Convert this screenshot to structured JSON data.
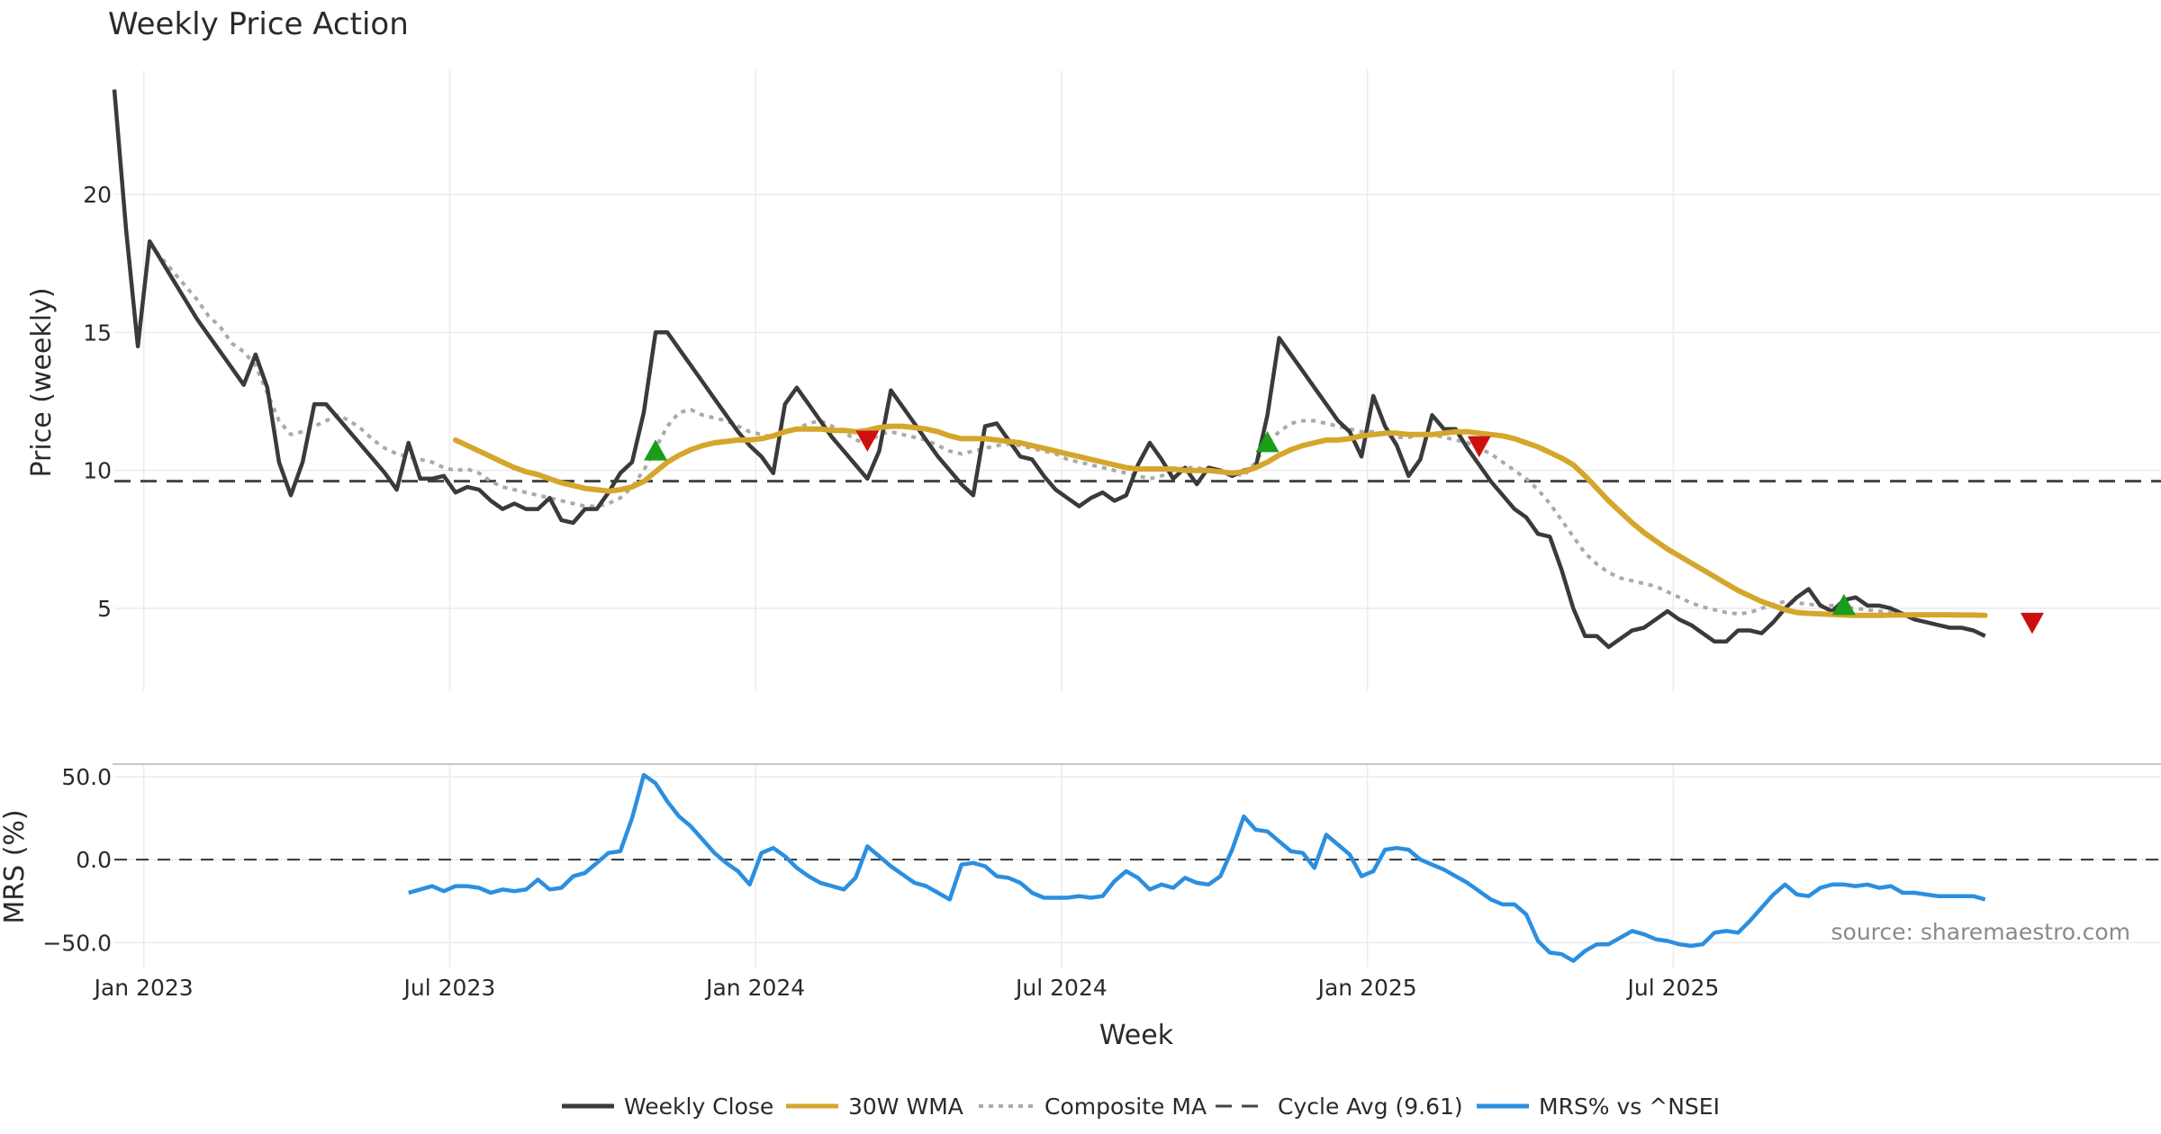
{
  "chart_data": {
    "type": "line",
    "title": "Weekly Price Action",
    "xlabel": "Week",
    "x_ticks": [
      "Jan 2023",
      "Jul 2023",
      "Jan 2024",
      "Jul 2024",
      "Jan 2025",
      "Jul 2025"
    ],
    "source": "source: sharemaestro.com",
    "grid": true,
    "legend_position": "bottom-center",
    "panels": [
      {
        "name": "price",
        "ylabel": "Price (weekly)",
        "ylim": [
          2,
          24.5
        ],
        "y_ticks": [
          5,
          10,
          15,
          20
        ],
        "reference_line": {
          "label": "Cycle Avg (9.61)",
          "value": 9.61
        },
        "series": [
          {
            "name": "Weekly Close",
            "start_week": 0,
            "values": [
              23.8,
              18.7,
              14.5,
              18.3,
              17.6,
              16.9,
              16.2,
              15.5,
              14.9,
              14.3,
              13.7,
              13.1,
              14.2,
              13.0,
              10.3,
              9.1,
              10.3,
              12.4,
              12.4,
              11.9,
              11.4,
              10.9,
              10.4,
              9.9,
              9.3,
              11.0,
              9.7,
              9.7,
              9.8,
              9.2,
              9.4,
              9.3,
              8.9,
              8.6,
              8.8,
              8.6,
              8.6,
              9.0,
              8.2,
              8.1,
              8.6,
              8.6,
              9.2,
              9.9,
              10.3,
              12.1,
              15.0,
              15.0,
              14.4,
              13.8,
              13.2,
              12.6,
              12.0,
              11.4,
              10.9,
              10.5,
              9.9,
              12.4,
              13.0,
              12.4,
              11.8,
              11.2,
              10.7,
              10.2,
              9.7,
              10.7,
              12.9,
              12.3,
              11.7,
              11.1,
              10.5,
              10.0,
              9.5,
              9.1,
              11.6,
              11.7,
              11.1,
              10.5,
              10.4,
              9.8,
              9.3,
              9.0,
              8.7,
              9.0,
              9.2,
              8.9,
              9.1,
              10.2,
              11.0,
              10.4,
              9.7,
              10.1,
              9.5,
              10.1,
              10.0,
              9.8,
              10.0,
              10.1,
              12.0,
              14.8,
              14.2,
              13.6,
              13.0,
              12.4,
              11.8,
              11.4,
              10.5,
              12.7,
              11.6,
              10.9,
              9.8,
              10.4,
              12.0,
              11.5,
              11.5,
              10.8,
              10.2,
              9.6,
              9.1,
              8.6,
              8.3,
              7.7,
              7.6,
              6.4,
              5.0,
              4.0,
              4.0,
              3.6,
              3.9,
              4.2,
              4.3,
              4.6,
              4.9,
              4.6,
              4.4,
              4.1,
              3.8,
              3.8,
              4.2,
              4.2,
              4.1,
              4.5,
              5.0,
              5.4,
              5.7,
              5.1,
              4.9,
              5.3,
              5.4,
              5.1,
              5.1,
              5.0,
              4.8,
              4.6,
              4.5,
              4.4,
              4.3,
              4.3,
              4.2,
              4.0
            ]
          },
          {
            "name": "30W WMA",
            "start_week": 29,
            "values": [
              11.1,
              10.9,
              10.7,
              10.5,
              10.3,
              10.1,
              9.95,
              9.85,
              9.7,
              9.55,
              9.45,
              9.35,
              9.3,
              9.25,
              9.3,
              9.4,
              9.6,
              9.95,
              10.3,
              10.55,
              10.75,
              10.9,
              11.0,
              11.05,
              11.1,
              11.1,
              11.15,
              11.25,
              11.4,
              11.5,
              11.5,
              11.5,
              11.45,
              11.45,
              11.4,
              11.45,
              11.55,
              11.6,
              11.6,
              11.55,
              11.5,
              11.4,
              11.25,
              11.15,
              11.15,
              11.15,
              11.1,
              11.05,
              11.0,
              10.9,
              10.8,
              10.7,
              10.6,
              10.5,
              10.4,
              10.3,
              10.2,
              10.1,
              10.05,
              10.05,
              10.05,
              10.05,
              10.0,
              10.0,
              10.0,
              9.95,
              9.9,
              9.95,
              10.1,
              10.3,
              10.55,
              10.75,
              10.9,
              11.0,
              11.1,
              11.1,
              11.15,
              11.25,
              11.3,
              11.35,
              11.35,
              11.3,
              11.3,
              11.3,
              11.35,
              11.4,
              11.4,
              11.35,
              11.3,
              11.25,
              11.15,
              11.0,
              10.85,
              10.65,
              10.45,
              10.2,
              9.8,
              9.35,
              8.9,
              8.5,
              8.1,
              7.75,
              7.45,
              7.15,
              6.9,
              6.65,
              6.4,
              6.15,
              5.9,
              5.65,
              5.45,
              5.25,
              5.1,
              4.95,
              4.85,
              4.82,
              4.8,
              4.78,
              4.76,
              4.75,
              4.75,
              4.75,
              4.76,
              4.76,
              4.77,
              4.77,
              4.77,
              4.77,
              4.76,
              4.76,
              4.75
            ]
          },
          {
            "name": "Composite MA",
            "start_week": 3,
            "values": [
              18.2,
              17.7,
              17.2,
              16.7,
              16.2,
              15.6,
              15.2,
              14.6,
              14.3,
              13.8,
              12.8,
              11.8,
              11.3,
              11.4,
              11.6,
              11.8,
              12.0,
              11.8,
              11.5,
              11.1,
              10.8,
              10.6,
              10.5,
              10.4,
              10.3,
              10.1,
              10.0,
              10.05,
              9.9,
              9.6,
              9.4,
              9.3,
              9.2,
              9.1,
              9.0,
              8.9,
              8.8,
              8.7,
              8.7,
              8.8,
              9.0,
              9.4,
              10.0,
              10.8,
              11.6,
              12.1,
              12.2,
              12.0,
              11.9,
              11.8,
              11.6,
              11.4,
              11.3,
              11.2,
              11.4,
              11.5,
              11.7,
              11.8,
              11.6,
              11.4,
              11.1,
              11.0,
              11.3,
              11.4,
              11.3,
              11.2,
              11.1,
              10.9,
              10.7,
              10.6,
              10.7,
              10.8,
              10.9,
              10.95,
              10.9,
              10.8,
              10.7,
              10.6,
              10.4,
              10.3,
              10.2,
              10.1,
              10.0,
              9.9,
              9.8,
              9.7,
              9.8,
              10.0,
              10.1,
              10.1,
              10.0,
              10.0,
              9.9,
              9.8,
              10.3,
              11.0,
              11.4,
              11.7,
              11.8,
              11.8,
              11.7,
              11.6,
              11.5,
              11.4,
              11.4,
              11.3,
              11.2,
              11.2,
              11.3,
              11.3,
              11.2,
              11.1,
              11.0,
              10.8,
              10.6,
              10.3,
              10.0,
              9.7,
              9.3,
              8.8,
              8.2,
              7.6,
              7.0,
              6.6,
              6.3,
              6.1,
              6.0,
              5.9,
              5.8,
              5.6,
              5.4,
              5.2,
              5.05,
              4.95,
              4.85,
              4.8,
              4.85,
              5.0,
              5.15,
              5.25,
              5.2,
              5.15,
              5.1,
              5.1,
              5.05,
              5.0,
              4.95,
              4.9,
              4.85,
              4.8,
              4.7
            ]
          }
        ],
        "markers": [
          {
            "type": "buy",
            "week": 46,
            "value": 10.7
          },
          {
            "type": "sell",
            "week": 64,
            "value": 11.1
          },
          {
            "type": "buy",
            "week": 98,
            "value": 11.0
          },
          {
            "type": "sell",
            "week": 116,
            "value": 10.9
          },
          {
            "type": "buy",
            "week": 147,
            "value": 5.1
          },
          {
            "type": "sell",
            "week": 163,
            "value": 4.5
          }
        ]
      },
      {
        "name": "mrs",
        "ylabel": "MRS (%)",
        "ylim": [
          -65,
          57
        ],
        "y_ticks": [
          "50.0",
          "0.0",
          "−50.0"
        ],
        "y_tick_values": [
          50,
          0,
          -50
        ],
        "reference_line": {
          "value": 0
        },
        "series": [
          {
            "name": "MRS% vs ^NSEI",
            "start_week": 25,
            "values": [
              -20,
              -18,
              -16,
              -19,
              -16,
              -16,
              -17,
              -20,
              -18,
              -19,
              -18,
              -12,
              -18,
              -17,
              -10,
              -8,
              -2,
              4,
              5,
              25,
              51,
              46,
              35,
              26,
              20,
              12,
              4,
              -2,
              -7,
              -15,
              4,
              7,
              2,
              -5,
              -10,
              -14,
              -16,
              -18,
              -11,
              8,
              2,
              -4,
              -9,
              -14,
              -16,
              -20,
              -24,
              -3,
              -2,
              -4,
              -10,
              -11,
              -14,
              -20,
              -23,
              -23,
              -23,
              -22,
              -23,
              -22,
              -13,
              -7,
              -11,
              -18,
              -15,
              -17,
              -11,
              -14,
              -15,
              -10,
              6,
              26,
              18,
              17,
              11,
              5,
              4,
              -5,
              15,
              9,
              3,
              -10,
              -7,
              6,
              7,
              6,
              0,
              -3,
              -6,
              -10,
              -14,
              -19,
              -24,
              -27,
              -27,
              -33,
              -49,
              -56,
              -57,
              -61,
              -55,
              -51,
              -51,
              -47,
              -43,
              -45,
              -48,
              -49,
              -51,
              -52,
              -51,
              -44,
              -43,
              -44,
              -37,
              -29,
              -21,
              -15,
              -21,
              -22,
              -17,
              -15,
              -15,
              -16,
              -15,
              -17,
              -16,
              -20,
              -20,
              -21,
              -22,
              -22,
              -22,
              -22,
              -24
            ]
          }
        ]
      }
    ],
    "legend": [
      {
        "label": "Weekly Close",
        "color": "#3a3a3a",
        "style": "solid"
      },
      {
        "label": "30W WMA",
        "color": "#d4a72c",
        "style": "solid"
      },
      {
        "label": "Composite MA",
        "color": "#aaaaaa",
        "style": "dotted"
      },
      {
        "label": "Cycle Avg (9.61)",
        "color": "#444444",
        "style": "dashed"
      },
      {
        "label": "MRS% vs ^NSEI",
        "color": "#2b8fe0",
        "style": "solid"
      }
    ],
    "colors": {
      "close": "#3a3a3a",
      "wma": "#d4a72c",
      "composite": "#aaaaaa",
      "cycle": "#444444",
      "mrs": "#2b8fe0",
      "buy": "#1a9e1a",
      "sell": "#cc1010"
    }
  }
}
